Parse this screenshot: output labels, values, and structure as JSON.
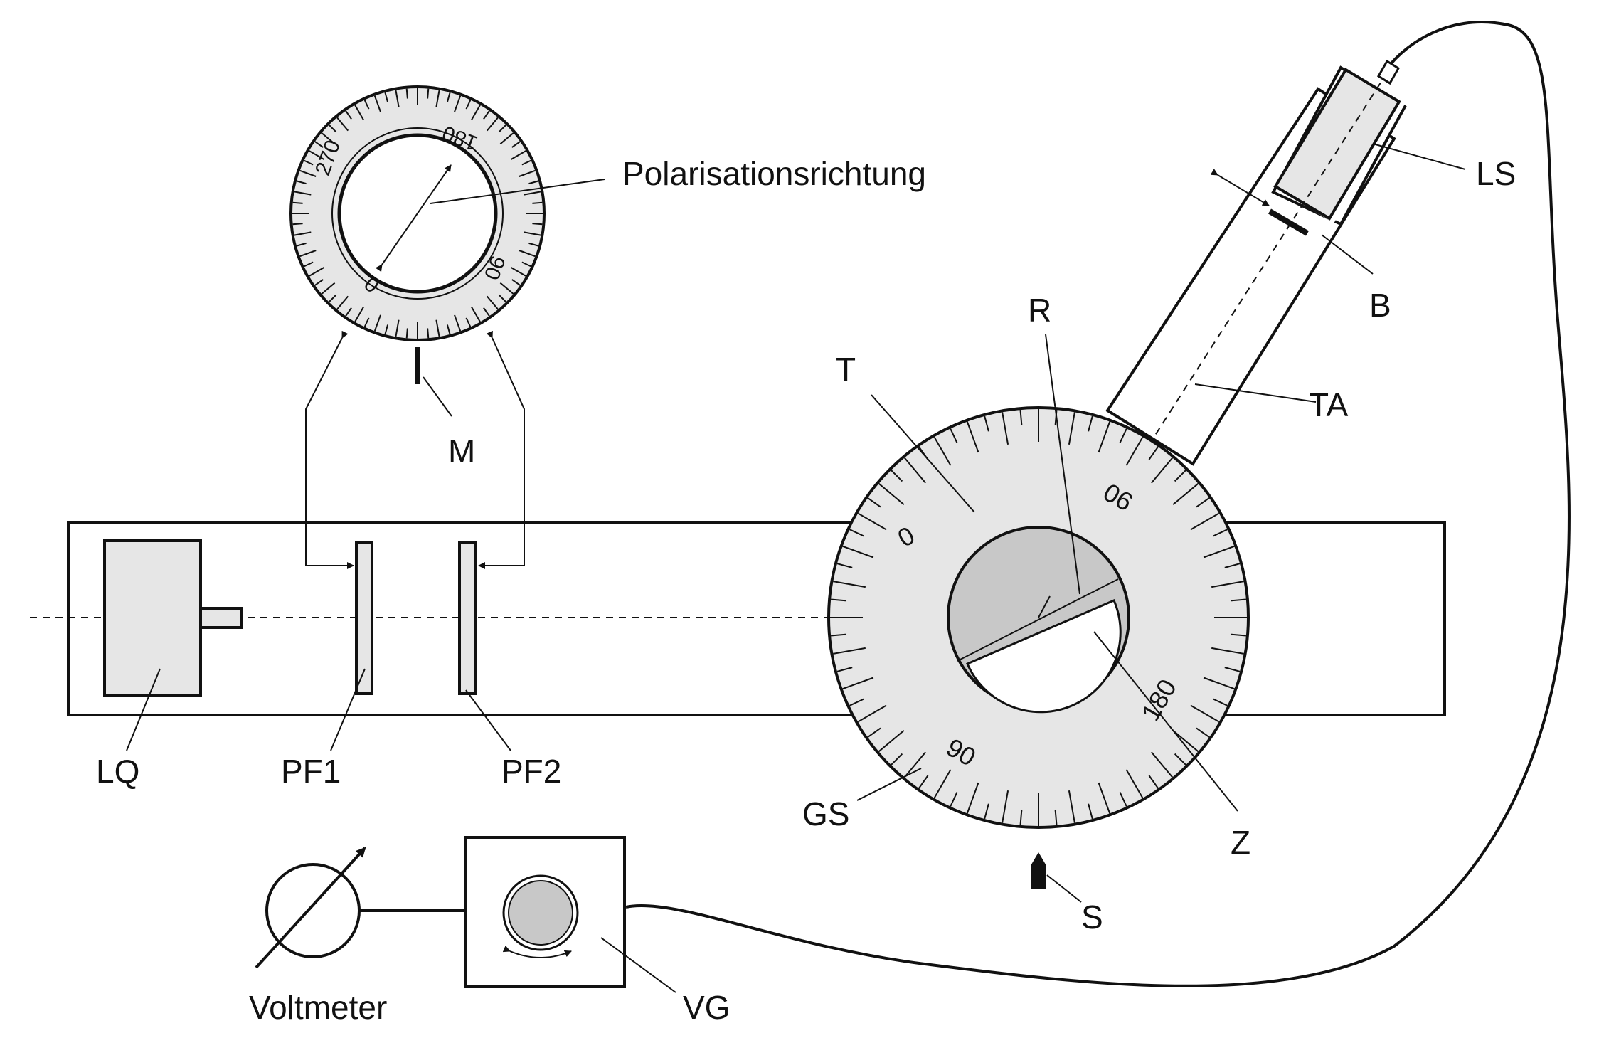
{
  "labels": {
    "polarisation": "Polarisationsrichtung",
    "ls": "LS",
    "b": "B",
    "r": "R",
    "t": "T",
    "ta": "TA",
    "m": "M",
    "lq": "LQ",
    "pf1": "PF1",
    "pf2": "PF2",
    "gs": "GS",
    "z": "Z",
    "s": "S",
    "vg": "VG",
    "voltmeter": "Voltmeter"
  },
  "small_dial": {
    "n0": "0",
    "n90": "90",
    "n180": "180",
    "n270": "270"
  },
  "big_dial": {
    "n0": "0",
    "n90a": "90",
    "n180": "180",
    "n90b": "90"
  },
  "colors": {
    "line": "#111111",
    "fill": "#e6e6e6",
    "fill_dark": "#c8c8c8",
    "bg": "#ffffff"
  },
  "icons": [
    "meter-arrow-icon",
    "rotate-arrows-icon"
  ]
}
